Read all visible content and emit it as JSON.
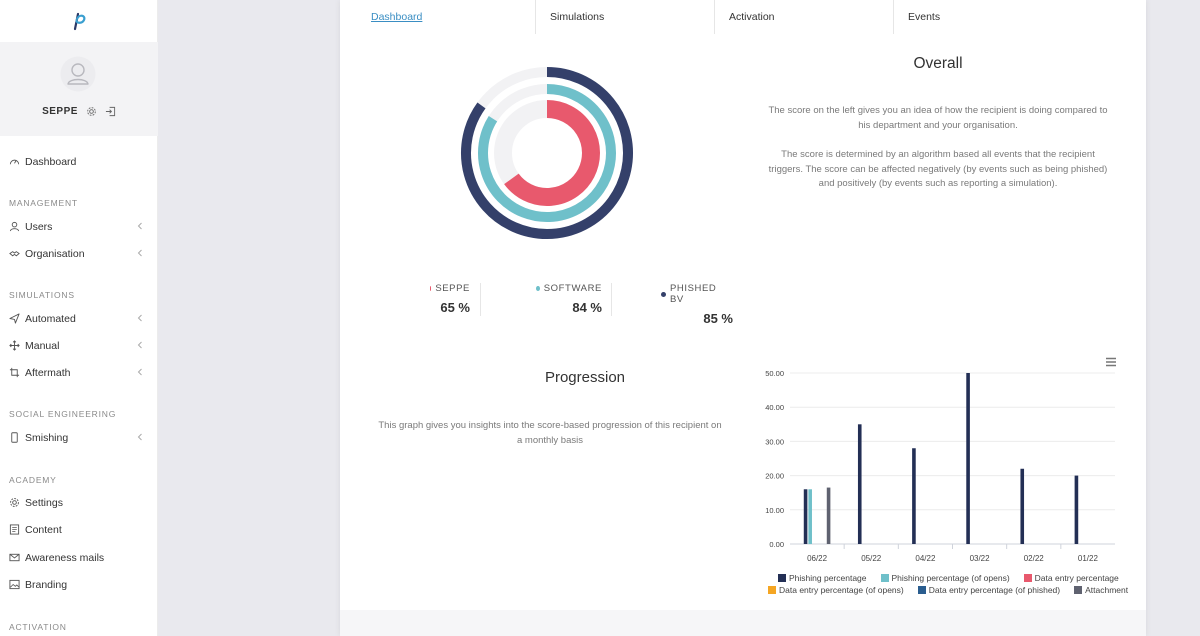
{
  "user": {
    "name": "SEPPE"
  },
  "nav": {
    "dashboard": "Dashboard",
    "sections": {
      "management": "MANAGEMENT",
      "simulations": "SIMULATIONS",
      "social": "SOCIAL ENGINEERING",
      "academy": "ACADEMY",
      "activation": "ACTIVATION"
    },
    "items": {
      "users": "Users",
      "organisation": "Organisation",
      "automated": "Automated",
      "manual": "Manual",
      "aftermath": "Aftermath",
      "smishing": "Smishing",
      "settings": "Settings",
      "content": "Content",
      "awareness": "Awareness mails",
      "branding": "Branding"
    }
  },
  "tabs": [
    "Dashboard",
    "Simulations",
    "Activation",
    "Events"
  ],
  "overall": {
    "title": "Overall",
    "desc1_l1": "The score on the left gives you an idea of how the recipient is doing compared to",
    "desc1_l2": "his department and your organisation.",
    "desc2_l1": "The score is determined by an algorithm based all events that the recipient",
    "desc2_l2": "triggers. The score can be affected negatively (by events such as being phished)",
    "desc2_l3": "and positively (by events such as reporting a simulation)."
  },
  "scores": [
    {
      "name": "SEPPE",
      "value": 65,
      "value_label": "65 %",
      "color": "#e8596d"
    },
    {
      "name": "SOFTWARE",
      "value": 84,
      "value_label": "84 %",
      "color": "#6fc0ca"
    },
    {
      "name": "PHISHED BV",
      "value": 85,
      "value_label": "85 %",
      "color": "#34406a"
    }
  ],
  "progression": {
    "title": "Progression",
    "desc_l1": "This graph gives you insights into the score-based progression of this recipient on",
    "desc_l2": "a monthly basis"
  },
  "chart_data": {
    "type": "bar",
    "categories": [
      "06/22",
      "05/22",
      "04/22",
      "03/22",
      "02/22",
      "01/22"
    ],
    "y_ticks": [
      "0.00",
      "10.00",
      "20.00",
      "30.00",
      "40.00",
      "50.00"
    ],
    "ylim": [
      0,
      50
    ],
    "series": [
      {
        "name": "Phishing percentage",
        "color": "#232f55",
        "values": [
          16,
          35,
          28,
          50,
          22,
          20
        ]
      },
      {
        "name": "Phishing percentage (of opens)",
        "color": "#6fc0ca",
        "values": [
          16,
          0,
          0,
          0,
          0,
          0
        ]
      },
      {
        "name": "Data entry percentage",
        "color": "#e8596d",
        "values": [
          0,
          0,
          0,
          0,
          0,
          0
        ]
      },
      {
        "name": "Data entry percentage (of opens)",
        "color": "#f5a623",
        "values": [
          0,
          0,
          0,
          0,
          0,
          0
        ]
      },
      {
        "name": "Data entry percentage (of phished)",
        "color": "#2a5d8f",
        "values": [
          0,
          0,
          0,
          0,
          0,
          0
        ]
      },
      {
        "name": "Attachment",
        "color": "#5f6270",
        "values": [
          16.5,
          0,
          0,
          0,
          0,
          0
        ]
      }
    ]
  }
}
